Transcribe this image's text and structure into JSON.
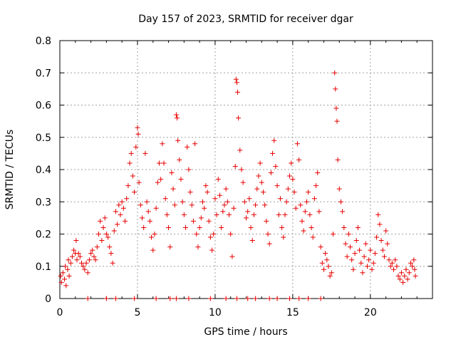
{
  "chart_data": {
    "type": "scatter",
    "title": "Day 157 of 2023, SRMTID for receiver dgar",
    "xlabel": "GPS time / hours",
    "ylabel": "SRMTID / TECUs",
    "xlim": [
      0,
      24
    ],
    "ylim": [
      0,
      0.8
    ],
    "xticks": [
      0,
      5,
      10,
      15,
      20
    ],
    "yticks": [
      0,
      0.1,
      0.2,
      0.3,
      0.4,
      0.5,
      0.6,
      0.7,
      0.8
    ],
    "xtick_labels": [
      "0",
      "5",
      "10",
      "15",
      "20"
    ],
    "ytick_labels": [
      "0",
      "0.1",
      "0.2",
      "0.3",
      "0.4",
      "0.5",
      "0.6",
      "0.7",
      "0.8"
    ],
    "grid": true,
    "marker": "+",
    "color": "#e60000",
    "series": [
      {
        "name": "SRMTID",
        "points": [
          [
            0.05,
            0.07
          ],
          [
            0.1,
            0.05
          ],
          [
            0.2,
            0.08
          ],
          [
            0.3,
            0.06
          ],
          [
            0.35,
            0.1
          ],
          [
            0.4,
            0.04
          ],
          [
            0.5,
            0.09
          ],
          [
            0.55,
            0.12
          ],
          [
            0.6,
            0.07
          ],
          [
            0.7,
            0.11
          ],
          [
            0.8,
            0.13
          ],
          [
            0.9,
            0.15
          ],
          [
            1.0,
            0.14
          ],
          [
            1.05,
            0.18
          ],
          [
            1.1,
            0.12
          ],
          [
            1.2,
            0.14
          ],
          [
            1.3,
            0.13
          ],
          [
            1.4,
            0.11
          ],
          [
            1.5,
            0.1
          ],
          [
            1.6,
            0.09
          ],
          [
            1.7,
            0.11
          ],
          [
            1.8,
            0.08
          ],
          [
            1.9,
            0.12
          ],
          [
            2.0,
            0.14
          ],
          [
            2.1,
            0.15
          ],
          [
            2.2,
            0.13
          ],
          [
            2.3,
            0.12
          ],
          [
            2.4,
            0.16
          ],
          [
            2.5,
            0.2
          ],
          [
            2.6,
            0.24
          ],
          [
            2.7,
            0.18
          ],
          [
            2.8,
            0.22
          ],
          [
            2.9,
            0.25
          ],
          [
            3.0,
            0.2
          ],
          [
            3.1,
            0.19
          ],
          [
            3.2,
            0.16
          ],
          [
            3.3,
            0.14
          ],
          [
            3.4,
            0.11
          ],
          [
            3.5,
            0.21
          ],
          [
            3.6,
            0.27
          ],
          [
            3.7,
            0.23
          ],
          [
            3.8,
            0.29
          ],
          [
            3.9,
            0.26
          ],
          [
            4.0,
            0.3
          ],
          [
            4.1,
            0.28
          ],
          [
            4.2,
            0.24
          ],
          [
            4.3,
            0.31
          ],
          [
            4.4,
            0.35
          ],
          [
            4.5,
            0.42
          ],
          [
            4.6,
            0.45
          ],
          [
            4.7,
            0.38
          ],
          [
            4.8,
            0.33
          ],
          [
            4.9,
            0.47
          ],
          [
            5.0,
            0.53
          ],
          [
            5.05,
            0.51
          ],
          [
            5.1,
            0.36
          ],
          [
            5.2,
            0.29
          ],
          [
            5.3,
            0.25
          ],
          [
            5.4,
            0.22
          ],
          [
            5.5,
            0.45
          ],
          [
            5.6,
            0.3
          ],
          [
            5.7,
            0.27
          ],
          [
            5.8,
            0.24
          ],
          [
            5.9,
            0.19
          ],
          [
            6.0,
            0.15
          ],
          [
            6.1,
            0.2
          ],
          [
            6.2,
            0.28
          ],
          [
            6.3,
            0.36
          ],
          [
            6.4,
            0.42
          ],
          [
            6.5,
            0.37
          ],
          [
            6.6,
            0.48
          ],
          [
            6.7,
            0.42
          ],
          [
            6.8,
            0.31
          ],
          [
            6.9,
            0.26
          ],
          [
            7.0,
            0.22
          ],
          [
            7.1,
            0.16
          ],
          [
            7.2,
            0.39
          ],
          [
            7.3,
            0.34
          ],
          [
            7.4,
            0.29
          ],
          [
            7.5,
            0.57
          ],
          [
            7.55,
            0.56
          ],
          [
            7.6,
            0.49
          ],
          [
            7.7,
            0.43
          ],
          [
            7.8,
            0.37
          ],
          [
            7.9,
            0.3
          ],
          [
            8.0,
            0.26
          ],
          [
            8.1,
            0.22
          ],
          [
            8.2,
            0.47
          ],
          [
            8.3,
            0.4
          ],
          [
            8.4,
            0.33
          ],
          [
            8.5,
            0.29
          ],
          [
            8.6,
            0.24
          ],
          [
            8.7,
            0.48
          ],
          [
            8.8,
            0.2
          ],
          [
            8.9,
            0.16
          ],
          [
            9.0,
            0.22
          ],
          [
            9.1,
            0.25
          ],
          [
            9.2,
            0.3
          ],
          [
            9.3,
            0.28
          ],
          [
            9.4,
            0.35
          ],
          [
            9.5,
            0.33
          ],
          [
            9.6,
            0.24
          ],
          [
            9.7,
            0.19
          ],
          [
            9.8,
            0.15
          ],
          [
            9.9,
            0.2
          ],
          [
            10.0,
            0.31
          ],
          [
            10.1,
            0.26
          ],
          [
            10.2,
            0.37
          ],
          [
            10.3,
            0.32
          ],
          [
            10.4,
            0.22
          ],
          [
            10.5,
            0.27
          ],
          [
            10.6,
            0.29
          ],
          [
            10.7,
            0.34
          ],
          [
            10.8,
            0.3
          ],
          [
            10.9,
            0.26
          ],
          [
            11.0,
            0.2
          ],
          [
            11.1,
            0.13
          ],
          [
            11.2,
            0.28
          ],
          [
            11.3,
            0.41
          ],
          [
            11.35,
            0.68
          ],
          [
            11.4,
            0.67
          ],
          [
            11.45,
            0.64
          ],
          [
            11.5,
            0.56
          ],
          [
            11.6,
            0.46
          ],
          [
            11.7,
            0.4
          ],
          [
            11.8,
            0.36
          ],
          [
            11.9,
            0.3
          ],
          [
            12.0,
            0.25
          ],
          [
            12.1,
            0.27
          ],
          [
            12.2,
            0.31
          ],
          [
            12.3,
            0.22
          ],
          [
            12.4,
            0.18
          ],
          [
            12.5,
            0.26
          ],
          [
            12.6,
            0.29
          ],
          [
            12.7,
            0.34
          ],
          [
            12.8,
            0.38
          ],
          [
            12.9,
            0.42
          ],
          [
            13.0,
            0.36
          ],
          [
            13.1,
            0.33
          ],
          [
            13.2,
            0.29
          ],
          [
            13.3,
            0.24
          ],
          [
            13.4,
            0.2
          ],
          [
            13.5,
            0.17
          ],
          [
            13.6,
            0.39
          ],
          [
            13.7,
            0.45
          ],
          [
            13.8,
            0.49
          ],
          [
            13.9,
            0.41
          ],
          [
            14.0,
            0.35
          ],
          [
            14.1,
            0.26
          ],
          [
            14.2,
            0.31
          ],
          [
            14.3,
            0.22
          ],
          [
            14.4,
            0.19
          ],
          [
            14.5,
            0.26
          ],
          [
            14.6,
            0.3
          ],
          [
            14.7,
            0.34
          ],
          [
            14.8,
            0.38
          ],
          [
            14.9,
            0.42
          ],
          [
            15.0,
            0.37
          ],
          [
            15.1,
            0.33
          ],
          [
            15.2,
            0.28
          ],
          [
            15.3,
            0.48
          ],
          [
            15.4,
            0.43
          ],
          [
            15.5,
            0.29
          ],
          [
            15.6,
            0.24
          ],
          [
            15.7,
            0.21
          ],
          [
            15.8,
            0.27
          ],
          [
            15.9,
            0.3
          ],
          [
            16.0,
            0.33
          ],
          [
            16.1,
            0.26
          ],
          [
            16.2,
            0.22
          ],
          [
            16.3,
            0.19
          ],
          [
            16.4,
            0.31
          ],
          [
            16.5,
            0.35
          ],
          [
            16.6,
            0.39
          ],
          [
            16.7,
            0.27
          ],
          [
            16.8,
            0.16
          ],
          [
            16.9,
            0.11
          ],
          [
            17.0,
            0.09
          ],
          [
            17.1,
            0.14
          ],
          [
            17.2,
            0.12
          ],
          [
            17.3,
            0.1
          ],
          [
            17.4,
            0.07
          ],
          [
            17.5,
            0.08
          ],
          [
            17.6,
            0.2
          ],
          [
            17.7,
            0.7
          ],
          [
            17.75,
            0.65
          ],
          [
            17.8,
            0.59
          ],
          [
            17.85,
            0.55
          ],
          [
            17.9,
            0.43
          ],
          [
            18.0,
            0.34
          ],
          [
            18.1,
            0.3
          ],
          [
            18.2,
            0.27
          ],
          [
            18.3,
            0.22
          ],
          [
            18.4,
            0.17
          ],
          [
            18.5,
            0.13
          ],
          [
            18.6,
            0.2
          ],
          [
            18.7,
            0.16
          ],
          [
            18.8,
            0.12
          ],
          [
            18.9,
            0.09
          ],
          [
            19.0,
            0.14
          ],
          [
            19.1,
            0.18
          ],
          [
            19.2,
            0.22
          ],
          [
            19.3,
            0.15
          ],
          [
            19.4,
            0.11
          ],
          [
            19.5,
            0.08
          ],
          [
            19.6,
            0.13
          ],
          [
            19.7,
            0.17
          ],
          [
            19.8,
            0.1
          ],
          [
            19.9,
            0.12
          ],
          [
            20.0,
            0.15
          ],
          [
            20.1,
            0.09
          ],
          [
            20.2,
            0.11
          ],
          [
            20.3,
            0.14
          ],
          [
            20.4,
            0.19
          ],
          [
            20.5,
            0.26
          ],
          [
            20.6,
            0.23
          ],
          [
            20.7,
            0.18
          ],
          [
            20.8,
            0.15
          ],
          [
            20.9,
            0.13
          ],
          [
            21.0,
            0.21
          ],
          [
            21.1,
            0.17
          ],
          [
            21.2,
            0.12
          ],
          [
            21.3,
            0.1
          ],
          [
            21.4,
            0.11
          ],
          [
            21.5,
            0.09
          ],
          [
            21.6,
            0.12
          ],
          [
            21.7,
            0.1
          ],
          [
            21.8,
            0.07
          ],
          [
            21.9,
            0.06
          ],
          [
            22.0,
            0.08
          ],
          [
            22.1,
            0.05
          ],
          [
            22.2,
            0.07
          ],
          [
            22.3,
            0.09
          ],
          [
            22.4,
            0.06
          ],
          [
            22.5,
            0.08
          ],
          [
            22.6,
            0.11
          ],
          [
            22.7,
            0.1
          ],
          [
            22.8,
            0.12
          ],
          [
            22.85,
            0.09
          ],
          [
            22.9,
            0.07
          ],
          [
            1.8,
            0.0
          ],
          [
            3.0,
            0.0
          ],
          [
            3.6,
            0.0
          ],
          [
            4.8,
            0.0
          ],
          [
            6.2,
            0.0
          ],
          [
            7.1,
            0.0
          ],
          [
            7.5,
            0.0
          ],
          [
            8.3,
            0.0
          ],
          [
            9.7,
            0.0
          ],
          [
            10.7,
            0.0
          ],
          [
            11.4,
            0.0
          ],
          [
            12.1,
            0.0
          ],
          [
            12.6,
            0.0
          ],
          [
            13.5,
            0.0
          ],
          [
            14.0,
            0.0
          ],
          [
            14.8,
            0.0
          ],
          [
            15.4,
            0.0
          ],
          [
            16.0,
            0.0
          ],
          [
            16.8,
            0.0
          ]
        ]
      }
    ]
  }
}
